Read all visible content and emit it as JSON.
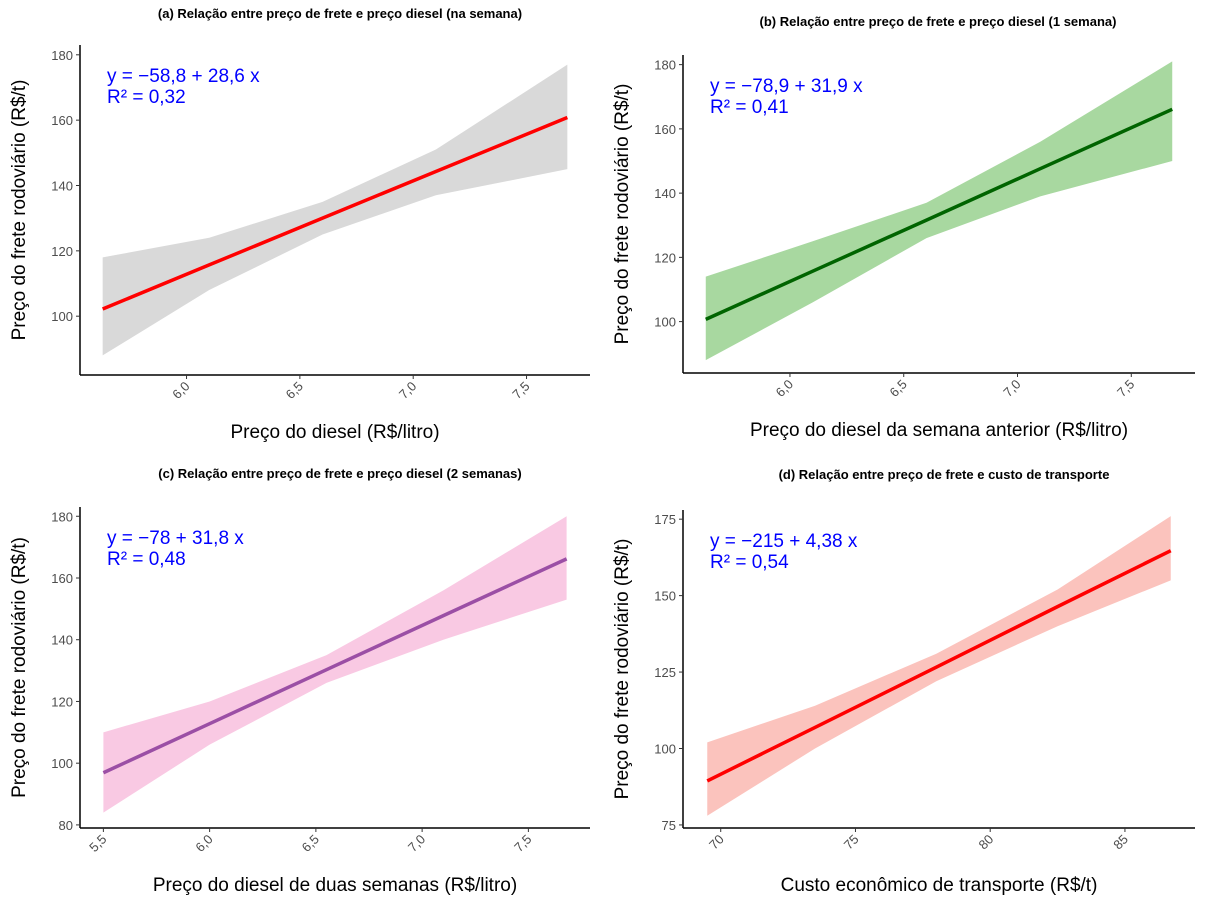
{
  "chart_data": [
    {
      "type": "line",
      "title": "(a) Relação entre preço de frete e preço diesel (na semana)",
      "x_label": "Preço do diesel (R$/litro)",
      "y_label": "Preço do frete rodoviário (R$/t)",
      "equation": "y = −58,8 + 28,6 x",
      "r_squared": "R² = 0,32",
      "x": [
        5.63,
        6.1,
        6.6,
        7.1,
        7.68
      ],
      "values": [
        102.2,
        115.7,
        130.0,
        144.3,
        160.8
      ],
      "lower": [
        88,
        108,
        125,
        137,
        145
      ],
      "upper": [
        118,
        124,
        135,
        151,
        177
      ],
      "line_color": "#ff0000",
      "band_color": "#d9d9d9",
      "xlim": [
        5.53,
        7.78
      ],
      "ylim": [
        82,
        183
      ],
      "xticks": [
        {
          "value": 6,
          "label": "6,0"
        },
        {
          "value": 6.5,
          "label": "6,5"
        },
        {
          "value": 7,
          "label": "7,0"
        },
        {
          "value": 7.5,
          "label": "7,5"
        }
      ],
      "yticks": [
        100,
        120,
        140,
        160,
        180
      ]
    },
    {
      "type": "line",
      "title": "(b) Relação entre preço de frete e preço diesel (1 semana)",
      "x_label": "Preço do diesel da semana anterior (R$/litro)",
      "y_label": "Preço do frete rodoviário (R$/t)",
      "equation": "y = −78,9 + 31,9 x",
      "r_squared": "R² = 0,41",
      "x": [
        5.63,
        6.1,
        6.6,
        7.1,
        7.68
      ],
      "values": [
        100.7,
        115.7,
        131.6,
        147.6,
        166.1
      ],
      "lower": [
        88,
        106,
        126,
        139,
        150
      ],
      "upper": [
        114,
        125,
        137,
        156,
        181
      ],
      "line_color": "#006400",
      "band_color": "#a8d8a0",
      "xlim": [
        5.53,
        7.78
      ],
      "ylim": [
        84,
        183
      ],
      "xticks": [
        {
          "value": 6,
          "label": "6,0"
        },
        {
          "value": 6.5,
          "label": "6,5"
        },
        {
          "value": 7,
          "label": "7,0"
        },
        {
          "value": 7.5,
          "label": "7,5"
        }
      ],
      "yticks": [
        100,
        120,
        140,
        160,
        180
      ]
    },
    {
      "type": "line",
      "title": "(c) Relação entre preço de frete e preço diesel (2 semanas)",
      "x_label": "Preço do diesel de duas semanas (R$/litro)",
      "y_label": "Preço do frete rodoviário (R$/t)",
      "equation": "y = −78 + 31,8 x",
      "r_squared": "R² = 0,48",
      "x": [
        5.5,
        6.0,
        6.55,
        7.1,
        7.68
      ],
      "values": [
        96.9,
        112.8,
        130.3,
        147.8,
        166.2
      ],
      "lower": [
        84,
        106,
        126,
        140,
        153
      ],
      "upper": [
        110,
        120,
        135,
        156,
        180
      ],
      "line_color": "#9b4fa5",
      "band_color": "#f9c9e3",
      "xlim": [
        5.39,
        7.79
      ],
      "ylim": [
        79,
        183
      ],
      "xticks": [
        {
          "value": 5.5,
          "label": "5,5"
        },
        {
          "value": 6,
          "label": "6,0"
        },
        {
          "value": 6.5,
          "label": "6,5"
        },
        {
          "value": 7,
          "label": "7,0"
        },
        {
          "value": 7.5,
          "label": "7,5"
        }
      ],
      "yticks": [
        80,
        100,
        120,
        140,
        160,
        180
      ]
    },
    {
      "type": "line",
      "title": "(d) Relação entre preço de frete e custo de transporte",
      "x_label": "Custo econômico de transporte (R$/t)",
      "y_label": "Preço do frete rodoviário (R$/t)",
      "equation": "y = −215 + 4,38 x",
      "r_squared": "R² = 0,54",
      "x": [
        69.5,
        73.5,
        78,
        82.5,
        86.7
      ],
      "values": [
        89.4,
        106.9,
        126.6,
        146.4,
        164.7
      ],
      "lower": [
        78,
        100,
        122,
        140,
        155
      ],
      "upper": [
        102,
        114,
        131,
        152,
        176
      ],
      "line_color": "#ff0000",
      "band_color": "#fbc3bd",
      "xlim": [
        68.6,
        87.6
      ],
      "ylim": [
        74,
        178
      ],
      "xticks": [
        70,
        75,
        80,
        85
      ],
      "yticks": [
        75,
        100,
        125,
        150,
        175
      ]
    }
  ]
}
